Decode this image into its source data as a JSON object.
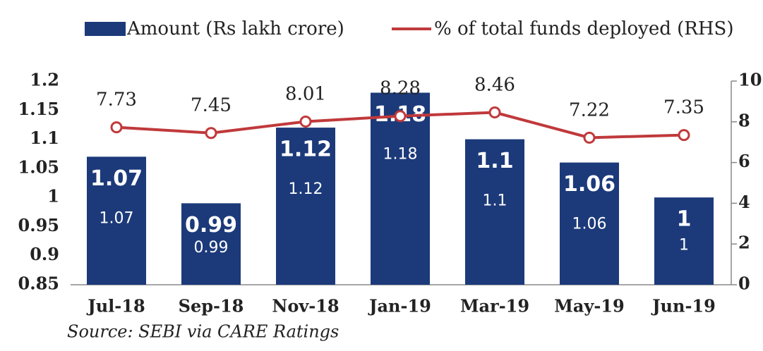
{
  "chart_data": {
    "type": "bar_line",
    "categories": [
      "Jul-18",
      "Sep-18",
      "Nov-18",
      "Jan-19",
      "Mar-19",
      "May-19",
      "Jun-19"
    ],
    "series": [
      {
        "name": "Amount (Rs lakh crore)",
        "color": "#1c3a7a",
        "type": "bar",
        "values": [
          1.07,
          0.99,
          1.12,
          1.18,
          1.1,
          1.06,
          1
        ]
      },
      {
        "name": "% of total funds deployed (RHS)",
        "color": "#c0393b",
        "type": "line",
        "axis": "y2",
        "values": [
          7.73,
          7.45,
          8.01,
          8.28,
          8.46,
          7.22,
          7.35
        ]
      }
    ],
    "ylim": [
      0.85,
      1.2
    ],
    "yticks": [
      0.85,
      0.9,
      0.95,
      1,
      1.05,
      1.1,
      1.15,
      1.2
    ],
    "y2lim": [
      0,
      10
    ],
    "y2ticks": [
      0,
      2,
      4,
      6,
      8,
      10
    ],
    "legend": "top",
    "source": "Source: SEBI via CARE Ratings"
  }
}
